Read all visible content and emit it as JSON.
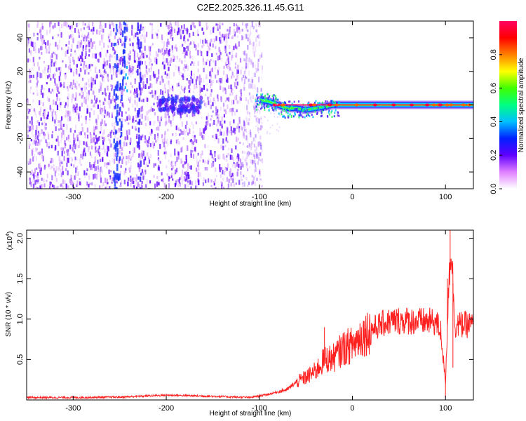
{
  "title": "C2E2.2025.326.11.45.G11",
  "chart_data": [
    {
      "type": "heatmap",
      "xlabel": "Height of straight line (km)",
      "ylabel": "Frequency (Hz)",
      "xlim": [
        -350,
        130
      ],
      "ylim": [
        -50,
        50
      ],
      "xticks": [
        -300,
        -200,
        -100,
        0,
        100
      ],
      "yticks": [
        -40,
        -20,
        0,
        20,
        40
      ],
      "colorbar": {
        "label": "Normalized spectral amplitude",
        "range": [
          0,
          1
        ],
        "ticks": [
          "0.0",
          "0.2",
          "0.4",
          "0.6",
          "0.8"
        ],
        "tick_values": [
          0,
          0.2,
          0.4,
          0.6,
          0.8
        ],
        "colors": [
          "#ffffff",
          "#e080ff",
          "#6000ff",
          "#0020ff",
          "#00c0ff",
          "#00ff80",
          "#40ff00",
          "#ffff00",
          "#ff8000",
          "#ff0000",
          "#ff0060"
        ]
      },
      "features": {
        "noise_region_x": [
          -350,
          -105
        ],
        "signal_line_freq": 0,
        "signal_start_x": -100,
        "wobble_points": [
          {
            "x": -100,
            "y": 3
          },
          {
            "x": -90,
            "y": 2
          },
          {
            "x": -80,
            "y": 0
          },
          {
            "x": -70,
            "y": -2
          },
          {
            "x": -60,
            "y": -2
          },
          {
            "x": -50,
            "y": -3
          },
          {
            "x": -40,
            "y": -2
          },
          {
            "x": -30,
            "y": -1
          },
          {
            "x": -20,
            "y": 0
          },
          {
            "x": 0,
            "y": 0
          },
          {
            "x": 100,
            "y": 0
          },
          {
            "x": 130,
            "y": 0
          }
        ]
      }
    },
    {
      "type": "line",
      "xlabel": "Height of straight line (km)",
      "ylabel": "SNR (10 * v/v)",
      "scale_label": "(x10",
      "scale_exp": "4",
      "scale_close": ")",
      "xlim": [
        -350,
        130
      ],
      "ylim": [
        0,
        21000
      ],
      "xticks": [
        -300,
        -200,
        -100,
        0,
        100
      ],
      "yticks": [
        5000,
        10000,
        15000,
        20000
      ],
      "ytick_labels": [
        "0.5",
        "1.0",
        "1.5",
        "2.0"
      ],
      "color": "#ff2020",
      "series": [
        {
          "x": [
            -350,
            -300,
            -250,
            -200,
            -150,
            -110,
            -90,
            -70,
            -60,
            -50,
            -40,
            -30,
            -20,
            -10,
            0,
            10,
            20,
            30,
            40,
            50,
            60,
            70,
            80,
            90,
            95,
            100,
            103,
            106,
            110,
            120,
            130
          ],
          "y": [
            300,
            300,
            350,
            600,
            450,
            300,
            700,
            1300,
            2200,
            2800,
            3500,
            5000,
            5200,
            6400,
            6800,
            8000,
            8700,
            9300,
            9700,
            9800,
            9800,
            9700,
            9700,
            9600,
            8500,
            2000,
            13000,
            19500,
            9300,
            9300,
            9300
          ]
        }
      ],
      "spikes": [
        {
          "x": -30,
          "y": 9000
        },
        {
          "x": -5,
          "y": 7600
        },
        {
          "x": 100,
          "y": 300
        },
        {
          "x": 102,
          "y": 15000
        },
        {
          "x": 105,
          "y": 21000
        },
        {
          "x": 108,
          "y": 4000
        }
      ]
    }
  ]
}
